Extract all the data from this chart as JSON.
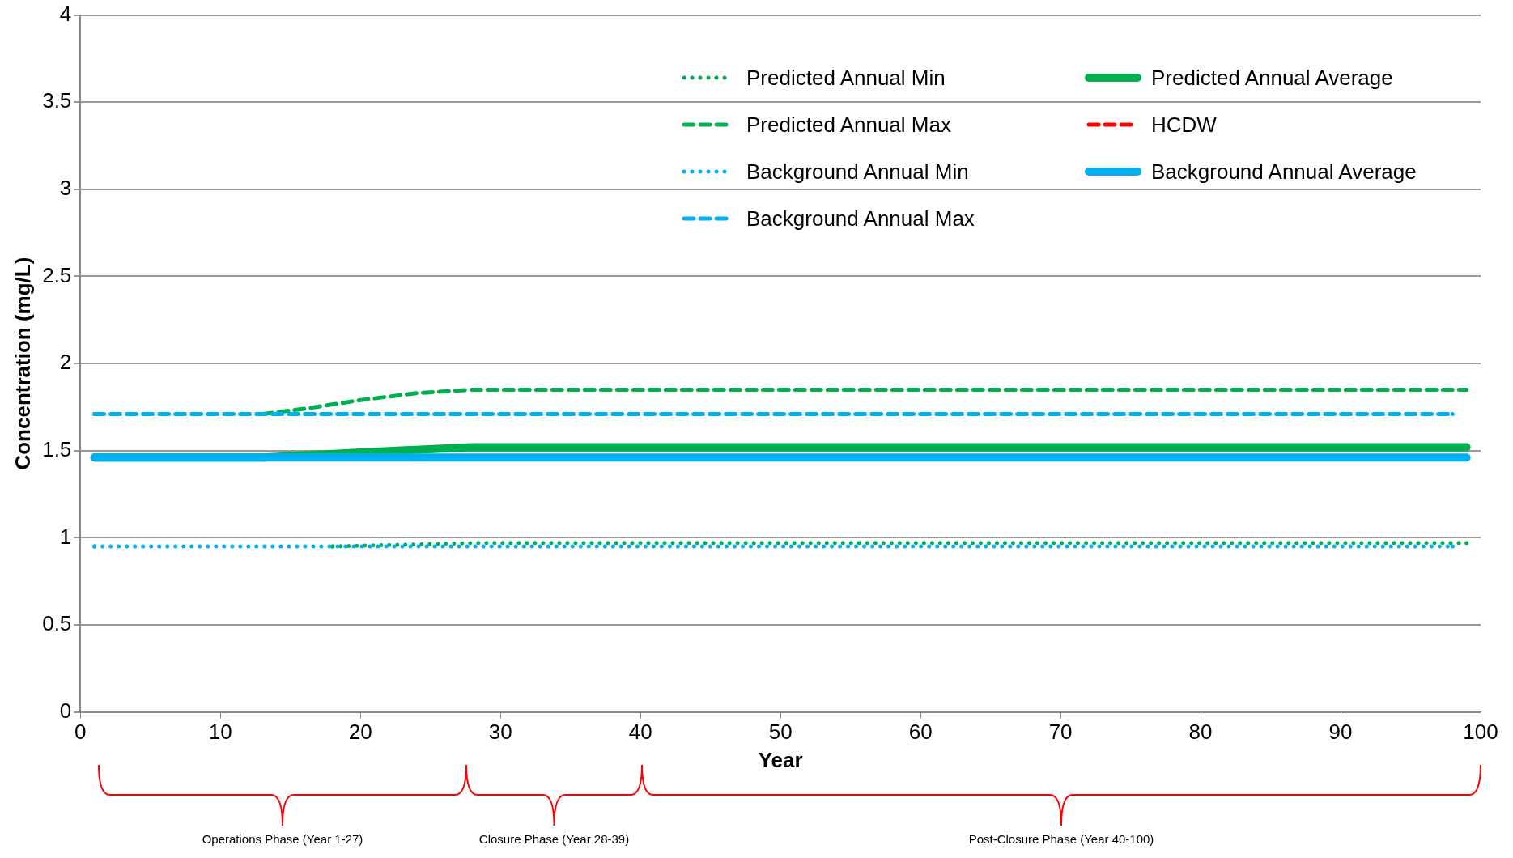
{
  "chart_data": {
    "type": "line",
    "xlabel": "Year",
    "ylabel": "Concentration (mg/L)",
    "xlim": [
      0,
      100
    ],
    "xticks": [
      0,
      10,
      20,
      30,
      40,
      50,
      60,
      70,
      80,
      90,
      100
    ],
    "ylim": [
      0,
      4
    ],
    "yticks": [
      0,
      0.5,
      1,
      1.5,
      2,
      2.5,
      3,
      3.5,
      4
    ],
    "grid": "y",
    "legend": "top right",
    "series": [
      {
        "name": "Predicted Annual Min",
        "color": "#00b050",
        "line_style": "dotted",
        "x": [
          18,
          28,
          99
        ],
        "values": [
          0.95,
          0.97,
          0.97
        ]
      },
      {
        "name": "Predicted Annual Max",
        "color": "#00b050",
        "line_style": "dashed",
        "x": [
          13,
          16,
          20,
          24,
          28,
          99
        ],
        "values": [
          1.71,
          1.74,
          1.79,
          1.83,
          1.85,
          1.85
        ]
      },
      {
        "name": "Background Annual Min",
        "color": "#00b0f0",
        "line_style": "dotted",
        "x": [
          1,
          98
        ],
        "values": [
          0.95,
          0.95
        ]
      },
      {
        "name": "Background Annual Max",
        "color": "#00b0f0",
        "line_style": "dashed",
        "x": [
          1,
          98
        ],
        "values": [
          1.71,
          1.71
        ]
      },
      {
        "name": "Predicted Annual Average",
        "color": "#00b050",
        "line_style": "solid",
        "x": [
          1,
          13,
          20,
          28,
          99
        ],
        "values": [
          1.46,
          1.46,
          1.49,
          1.52,
          1.52
        ]
      },
      {
        "name": "HCDW",
        "color": "#ff0000",
        "line_style": "dashed"
      },
      {
        "name": "Background Annual Average",
        "color": "#00b0f0",
        "line_style": "solid",
        "x": [
          1,
          99
        ],
        "values": [
          1.46,
          1.46
        ]
      }
    ],
    "annotations": [
      "Operations Phase (Year 1-27)",
      "Closure Phase (Year 28-39)",
      "Post-Closure Phase (Year 40-100)"
    ]
  }
}
